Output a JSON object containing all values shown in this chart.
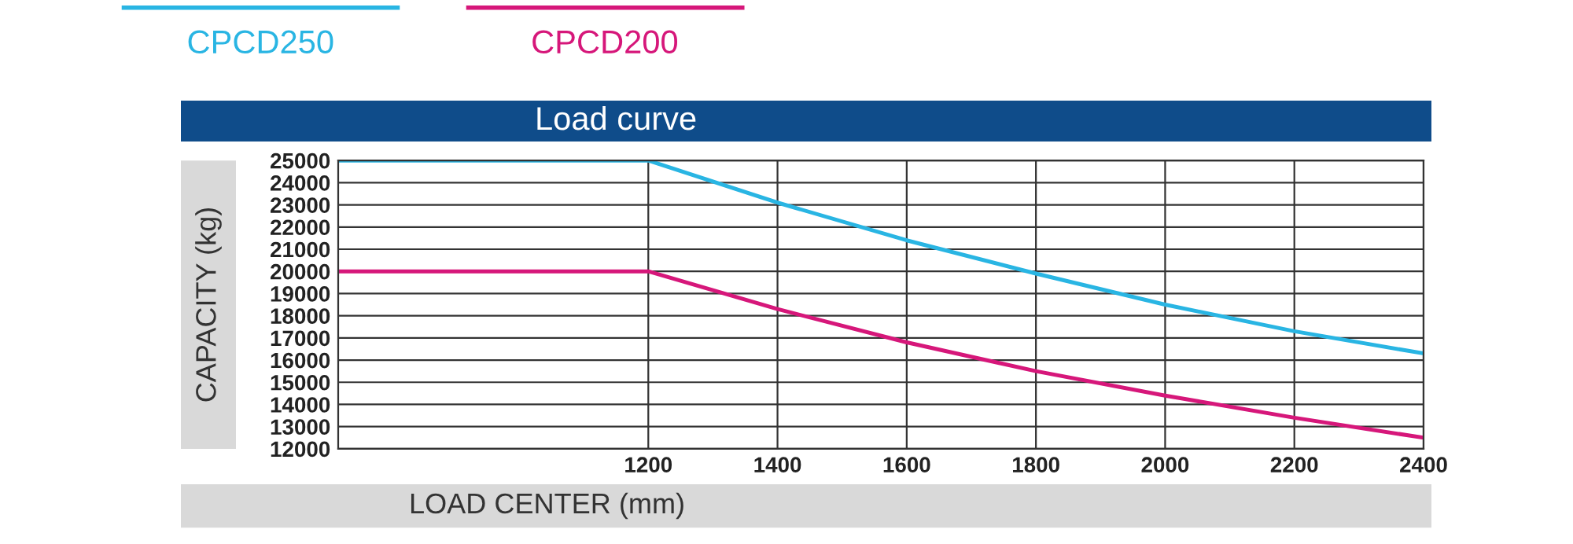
{
  "chart_data": {
    "type": "line",
    "title": "Load curve",
    "xlabel": "LOAD CENTER (mm)",
    "ylabel": "CAPACITY (kg)",
    "x": [
      720,
      1200,
      1400,
      1600,
      1800,
      2000,
      2200,
      2400
    ],
    "series": [
      {
        "name": "CPCD250",
        "color": "#29b5e3",
        "values": [
          25000,
          25000,
          23100,
          21400,
          19900,
          18500,
          17300,
          16300
        ]
      },
      {
        "name": "CPCD200",
        "color": "#d6177a",
        "values": [
          20000,
          20000,
          18300,
          16800,
          15500,
          14400,
          13400,
          12500
        ]
      }
    ],
    "xlim": [
      720,
      2400
    ],
    "xticks": [
      1200,
      1400,
      1600,
      1800,
      2000,
      2200,
      2400
    ],
    "ylim": [
      12000,
      25000
    ],
    "yticks": [
      12000,
      13000,
      14000,
      15000,
      16000,
      17000,
      18000,
      19000,
      20000,
      21000,
      22000,
      23000,
      24000,
      25000
    ],
    "grid": true,
    "legend": "top left",
    "marker": "none",
    "line_style": "solid"
  }
}
